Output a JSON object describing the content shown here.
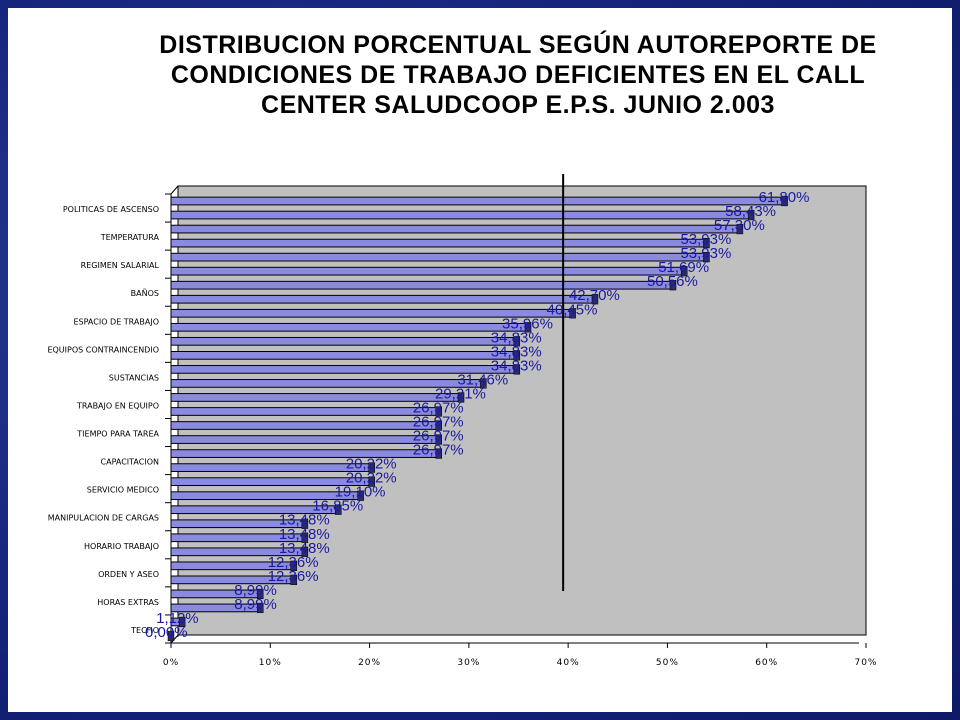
{
  "chart_data": {
    "type": "bar",
    "orientation": "horizontal",
    "title_lines": [
      "DISTRIBUCION PORCENTUAL SEGÚN AUTOREPORTE DE",
      "CONDICIONES DE TRABAJO DEFICIENTES EN EL CALL",
      "CENTER SALUDCOOP E.P.S. JUNIO 2.003"
    ],
    "xlim": [
      0,
      70
    ],
    "x_ticks": [
      "0%",
      "10%",
      "20%",
      "30%",
      "40%",
      "50%",
      "60%",
      "70%"
    ],
    "reference_line": 40,
    "plot_background": "#c0c0c0",
    "bar_color": "#8a8ae0",
    "label_color": "#1a1aa0",
    "category_labels": [
      "POLITICAS DE ASCENSO",
      "TEMPERATURA",
      "REGIMEN SALARIAL",
      "BAÑOS",
      "ESPACIO DE TRABAJO",
      "EQUIPOS CONTRAINCENDIO",
      "SUSTANCIAS",
      "TRABAJO EN EQUIPO",
      "TIEMPO PARA TAREA",
      "CAPACITACION",
      "SERVICIO MEDICO",
      "MANIPULACION DE CARGAS",
      "HORARIO TRABAJO",
      "ORDEN Y ASEO",
      "HORAS EXTRAS",
      "TECHO"
    ],
    "values": [
      61.8,
      58.43,
      57.3,
      53.93,
      53.93,
      51.69,
      50.56,
      42.7,
      40.45,
      35.96,
      34.83,
      34.83,
      34.83,
      31.46,
      29.21,
      26.97,
      26.97,
      26.97,
      26.97,
      20.22,
      20.22,
      19.1,
      16.85,
      13.48,
      13.48,
      13.48,
      12.36,
      12.36,
      8.99,
      8.99,
      1.12,
      0.0
    ],
    "value_labels": [
      "61,80%",
      "58,43%",
      "57,30%",
      "53,93%",
      "53,93%",
      "51,69%",
      "50,56%",
      "42,70%",
      "40,45%",
      "35,96%",
      "34,83%",
      "34,83%",
      "34,83%",
      "31,46%",
      "29,21%",
      "26,97%",
      "26,97%",
      "26,97%",
      "26,97%",
      "20,22%",
      "20,22%",
      "19,10%",
      "16,85%",
      "13,48%",
      "13,48%",
      "13,48%",
      "12,36%",
      "12,36%",
      "8,99%",
      "8,99%",
      "1,12%",
      "0,00%"
    ]
  }
}
